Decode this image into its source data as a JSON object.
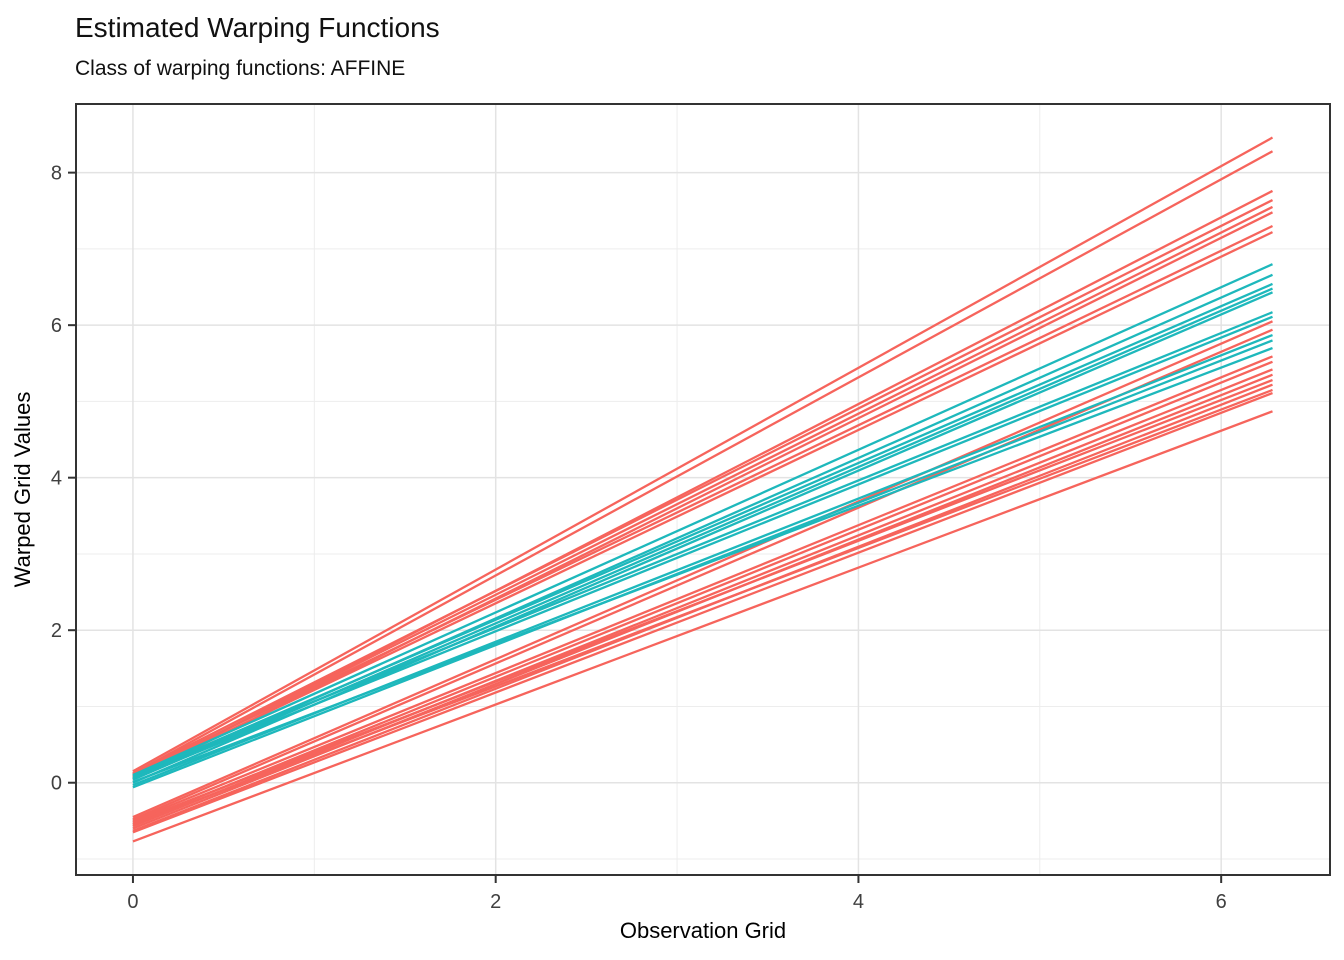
{
  "title": "Estimated Warping Functions",
  "subtitle": "Class of warping functions: AFFINE",
  "chart_data": {
    "type": "line",
    "title": "Estimated Warping Functions",
    "subtitle": "Class of warping functions: AFFINE",
    "xlabel": "Observation Grid",
    "ylabel": "Warped Grid Values",
    "x_domain": [
      0,
      6.283
    ],
    "xlim": [
      -0.314,
      6.6
    ],
    "ylim": [
      -1.21,
      8.9
    ],
    "x_major_ticks": [
      0,
      2,
      4,
      6
    ],
    "y_major_ticks": [
      0,
      2,
      4,
      6,
      8
    ],
    "x_minor_ticks": [
      1,
      3,
      5
    ],
    "y_minor_ticks": [
      -1,
      1,
      3,
      5,
      7
    ],
    "grid": true,
    "legend": "none",
    "panel_border_color": "#333333",
    "grid_major_color": "#e3e3e3",
    "grid_minor_color": "#ededed",
    "tick_color": "#333333",
    "colors": {
      "group1": "#F6645C",
      "group2": "#1EB8BC"
    },
    "series": [
      {
        "name": "warping-line-red",
        "color_key": "group1",
        "description": "Affine warping functions, cluster 1 (coral). Each line is [y at x=0, y at x=6.283].",
        "lines": [
          [
            0.15,
            8.46
          ],
          [
            0.12,
            8.28
          ],
          [
            0.07,
            7.76
          ],
          [
            0.12,
            7.64
          ],
          [
            0.09,
            7.55
          ],
          [
            0.05,
            7.48
          ],
          [
            0.11,
            7.3
          ],
          [
            0.08,
            7.22
          ],
          [
            -0.45,
            6.05
          ],
          [
            -0.48,
            5.94
          ],
          [
            -0.5,
            5.59
          ],
          [
            -0.54,
            5.52
          ],
          [
            -0.57,
            5.42
          ],
          [
            -0.6,
            5.35
          ],
          [
            -0.52,
            5.28
          ],
          [
            -0.63,
            5.22
          ],
          [
            -0.55,
            5.15
          ],
          [
            -0.65,
            5.11
          ],
          [
            -0.77,
            4.87
          ]
        ]
      },
      {
        "name": "warping-line-teal",
        "color_key": "group2",
        "description": "Affine warping functions, cluster 2 (teal). Each line is [y at x=0, y at x=6.283].",
        "lines": [
          [
            0.1,
            6.8
          ],
          [
            0.05,
            6.66
          ],
          [
            0.08,
            6.54
          ],
          [
            0.04,
            6.48
          ],
          [
            0.0,
            6.43
          ],
          [
            0.1,
            6.17
          ],
          [
            0.06,
            6.11
          ],
          [
            -0.03,
            5.87
          ],
          [
            -0.06,
            5.8
          ],
          [
            0.01,
            5.7
          ]
        ]
      }
    ]
  }
}
